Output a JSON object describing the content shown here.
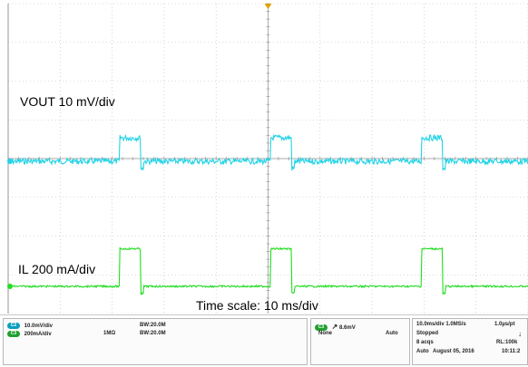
{
  "labels": {
    "vout": "VOUT 10 mV/div",
    "il": "IL 200 mA/div",
    "timescale": "Time scale: 10 ms/div"
  },
  "colors": {
    "vout_trace": "#22d3e6",
    "il_trace": "#22dd22",
    "grid": "#b8b8b8",
    "trigger_marker": "#e0a000"
  },
  "channels": [
    {
      "chip": "C2",
      "scale": "10.0mV/div",
      "impedance": "",
      "bw": "BW:20.0M"
    },
    {
      "chip": "C3",
      "scale": "200mA/div",
      "impedance": "1MΩ",
      "bw": "BW:20.0M"
    }
  ],
  "trigger": {
    "source_chip": "C3",
    "level": "8.6mV",
    "coupling": "None",
    "mode": "Auto"
  },
  "acquisition": {
    "rate": "10.0ms/div 1.0MS/s",
    "per_pt": "1.0µs/pt",
    "state": "Stopped",
    "acqs": "8 acqs",
    "record_length": "RL:100k",
    "mode": "Auto",
    "date": "August 05, 2016",
    "time": "10:11:2"
  },
  "chart_data": {
    "type": "line",
    "x_unit": "ms",
    "x_range": [
      0,
      100
    ],
    "pulse_windows_ms": [
      [
        21.5,
        25.5
      ],
      [
        50.5,
        54.5
      ],
      [
        79.5,
        83.5
      ]
    ],
    "series": [
      {
        "name": "VOUT 10 mV/div",
        "baseline_div": 0.0,
        "pulse_div": 1.0
      },
      {
        "name": "IL 200 mA/div",
        "baseline_div": 0.0,
        "pulse_div": 1.6
      }
    ]
  }
}
